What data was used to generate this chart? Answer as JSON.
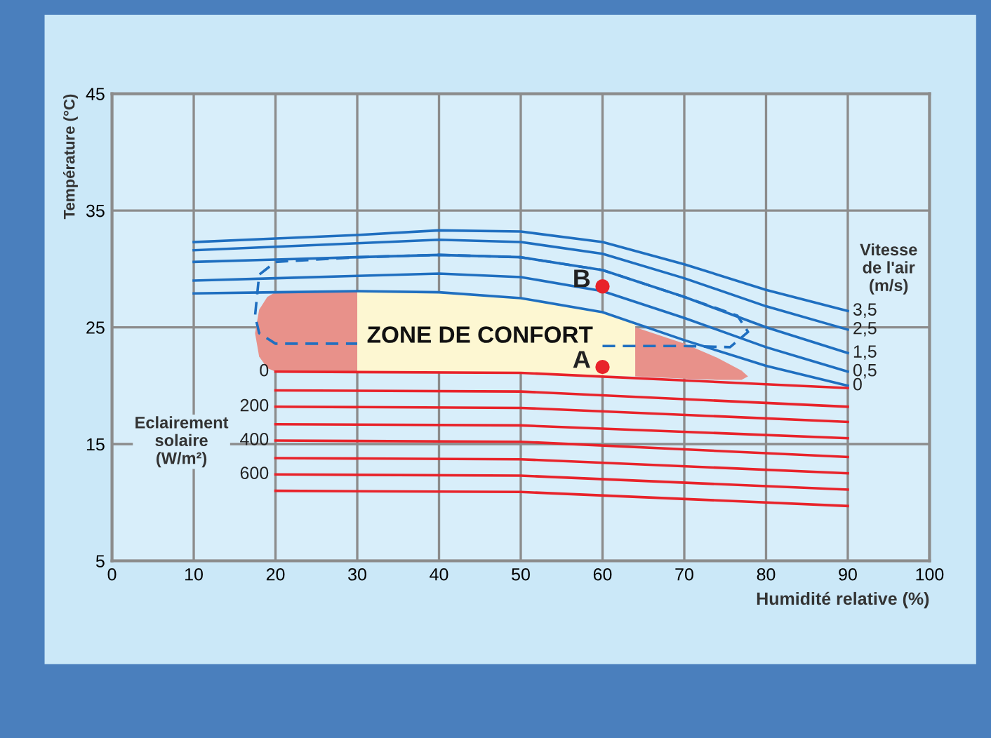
{
  "chart_data": {
    "type": "line",
    "xlabel": "Humidité relative (%)",
    "ylabel": "Température (°C)",
    "xlim": [
      0,
      100
    ],
    "ylim": [
      5,
      45
    ],
    "xticks": [
      0,
      10,
      20,
      30,
      40,
      50,
      60,
      70,
      80,
      90,
      100
    ],
    "yticks": [
      5,
      15,
      25,
      35,
      45
    ],
    "grid": true,
    "legend": false,
    "line_style": "solid",
    "marker": "none",
    "series": [
      {
        "type": "area",
        "color": "#e8918a",
        "x": [
          17.5,
          18,
          19,
          20,
          30,
          30,
          20,
          19,
          18
        ],
        "values": [
          24.5,
          26.5,
          27.6,
          28.0,
          28.1,
          21.2,
          21.2,
          21.5,
          22.5
        ]
      },
      {
        "type": "area",
        "color": "#fdf7d2",
        "x": [
          30,
          40,
          50,
          60,
          64,
          64,
          60,
          50,
          40,
          30
        ],
        "values": [
          28.1,
          28.0,
          27.5,
          26.3,
          25.4,
          20.8,
          20.9,
          21.1,
          21.2,
          21.2
        ]
      },
      {
        "type": "area",
        "color": "#e8918a",
        "x": [
          64,
          70,
          74,
          77,
          77.8,
          77,
          74,
          70,
          64
        ],
        "values": [
          25.0,
          23.6,
          22.4,
          21.3,
          20.8,
          20.5,
          20.5,
          20.6,
          20.8
        ]
      },
      {
        "name": "3,5",
        "color": "#1f6fc0",
        "x": [
          10,
          20,
          30,
          40,
          50,
          60,
          70,
          80,
          90
        ],
        "values": [
          32.3,
          32.6,
          32.9,
          33.3,
          33.2,
          32.3,
          30.4,
          28.2,
          26.4
        ]
      },
      {
        "name": "2,5",
        "color": "#1f6fc0",
        "x": [
          10,
          20,
          30,
          40,
          50,
          60,
          70,
          80,
          90
        ],
        "values": [
          31.6,
          31.9,
          32.2,
          32.5,
          32.3,
          31.3,
          29.2,
          26.8,
          24.8
        ]
      },
      {
        "name": "1,5",
        "color": "#1f6fc0",
        "x": [
          10,
          20,
          30,
          40,
          50,
          60,
          70,
          80,
          90
        ],
        "values": [
          30.6,
          30.8,
          31.0,
          31.2,
          31.0,
          29.9,
          27.6,
          25.0,
          22.8
        ]
      },
      {
        "name": "0,5",
        "color": "#1f6fc0",
        "x": [
          10,
          20,
          30,
          40,
          50,
          60,
          70,
          80,
          90
        ],
        "values": [
          29.0,
          29.2,
          29.4,
          29.6,
          29.3,
          28.1,
          25.8,
          23.3,
          21.2
        ]
      },
      {
        "name": "0",
        "color": "#1f6fc0",
        "x": [
          10,
          20,
          30,
          40,
          50,
          60,
          70,
          80,
          90
        ],
        "values": [
          27.9,
          28.0,
          28.1,
          28.0,
          27.5,
          26.3,
          23.9,
          21.7,
          20.0
        ]
      },
      {
        "type": "line",
        "line_style": "dashed",
        "color": "#1f6fc0",
        "x": [
          60,
          70,
          75.6,
          77.8,
          76.5,
          70,
          60,
          50,
          40,
          30,
          20,
          18,
          17.5,
          18,
          20,
          30
        ],
        "values": [
          23.4,
          23.4,
          23.3,
          24.6,
          26.0,
          27.6,
          29.9,
          31.0,
          31.2,
          31.0,
          30.6,
          29.5,
          26.0,
          24.5,
          23.6,
          23.6
        ]
      },
      {
        "name": "0",
        "color": "#e8232a",
        "x": [
          20,
          50,
          90
        ],
        "values": [
          21.2,
          21.1,
          19.8
        ]
      },
      {
        "color": "#e8232a",
        "x": [
          20,
          50,
          90
        ],
        "values": [
          19.6,
          19.5,
          18.2
        ]
      },
      {
        "name": "200",
        "color": "#e8232a",
        "x": [
          20,
          50,
          90
        ],
        "values": [
          18.2,
          18.1,
          16.9
        ]
      },
      {
        "color": "#e8232a",
        "x": [
          20,
          50,
          90
        ],
        "values": [
          16.7,
          16.6,
          15.5
        ]
      },
      {
        "name": "400",
        "color": "#e8232a",
        "x": [
          20,
          50,
          90
        ],
        "values": [
          15.3,
          15.2,
          13.9
        ]
      },
      {
        "color": "#e8232a",
        "x": [
          20,
          50,
          90
        ],
        "values": [
          13.8,
          13.7,
          12.5
        ]
      },
      {
        "name": "600",
        "color": "#e8232a",
        "x": [
          20,
          50,
          90
        ],
        "values": [
          12.4,
          12.3,
          11.1
        ]
      },
      {
        "color": "#e8232a",
        "x": [
          20,
          50,
          90
        ],
        "values": [
          11.0,
          10.9,
          9.7
        ]
      },
      {
        "type": "scatter",
        "marker": "circle",
        "color": "#e8232a",
        "x": [
          60,
          60
        ],
        "values": [
          28.5,
          21.6
        ]
      }
    ],
    "annotations": [
      {
        "text": "B",
        "x": 60,
        "y": 28.5
      },
      {
        "text": "A",
        "x": 60,
        "y": 21.6
      },
      "ZONE DE CONFORT",
      "Vitesse\nde l'air\n(m/s)",
      "Eclairement\nsolaire\n(W/m²)"
    ]
  }
}
